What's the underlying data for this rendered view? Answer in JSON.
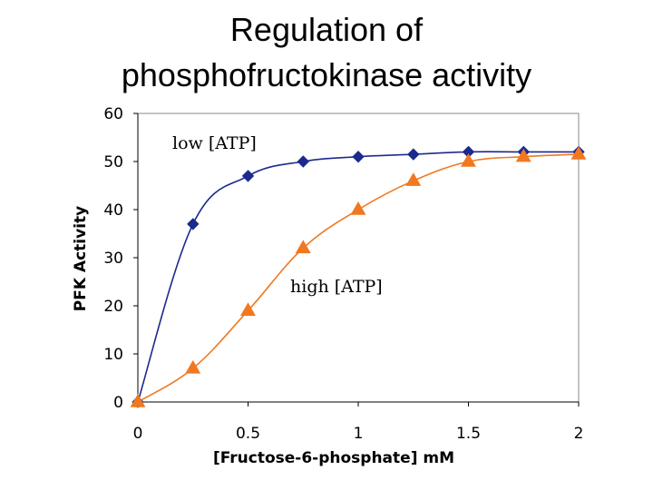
{
  "title_line1": "Regulation of",
  "title_line2": "phosphofructokinase activity",
  "chart_data": {
    "type": "line",
    "title": "Regulation of phosphofructokinase activity",
    "xlabel": "[Fructose-6-phosphate] mM",
    "ylabel": "PFK Activity",
    "xlim": [
      0,
      2
    ],
    "ylim": [
      0,
      60
    ],
    "xticks": [
      "0",
      "0.5",
      "1",
      "1.5",
      "2"
    ],
    "yticks": [
      "0",
      "10",
      "20",
      "30",
      "40",
      "50",
      "60"
    ],
    "grid": false,
    "legend": "none",
    "series": [
      {
        "name": "low [ATP]",
        "color": "#1c2a8c",
        "marker": "diamond",
        "x": [
          0,
          0.25,
          0.5,
          0.75,
          1,
          1.25,
          1.5,
          1.75,
          2
        ],
        "y": [
          0,
          37,
          47,
          50,
          51,
          51.5,
          52,
          52,
          52
        ]
      },
      {
        "name": "high [ATP]",
        "color": "#f07820",
        "marker": "triangle",
        "x": [
          0,
          0.25,
          0.5,
          0.75,
          1,
          1.25,
          1.5,
          1.75,
          2
        ],
        "y": [
          0,
          7,
          19,
          32,
          40,
          46,
          50,
          51,
          51.5
        ]
      }
    ]
  }
}
